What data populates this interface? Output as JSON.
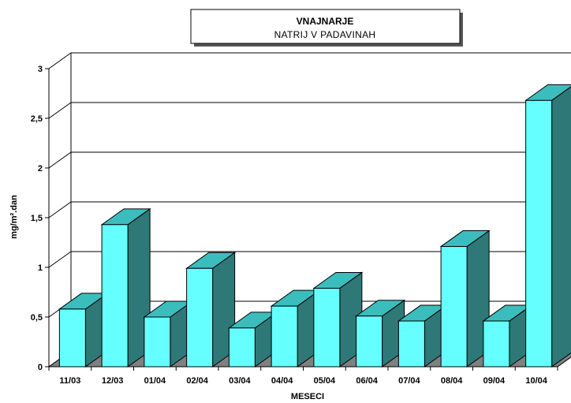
{
  "chart_data": {
    "type": "bar",
    "title": "VNAJNARJE",
    "subtitle": "NATRIJ V PADAVINAH",
    "xlabel": "MESECI",
    "ylabel": "mg/m².dan",
    "categories": [
      "11/03",
      "12/03",
      "01/04",
      "02/04",
      "03/04",
      "04/04",
      "05/04",
      "06/04",
      "07/04",
      "08/04",
      "09/04",
      "10/04"
    ],
    "values": [
      0.58,
      1.43,
      0.5,
      0.99,
      0.39,
      0.61,
      0.79,
      0.51,
      0.46,
      1.21,
      0.46,
      2.68
    ],
    "yticks": [
      "0",
      "0,5",
      "1",
      "1,5",
      "2",
      "2,5",
      "3"
    ],
    "ylim": [
      0,
      3
    ],
    "grid": true,
    "colors": {
      "front": "#66ffff",
      "top": "#3cbdbd",
      "side": "#2e7878",
      "floor": "#808080"
    }
  }
}
